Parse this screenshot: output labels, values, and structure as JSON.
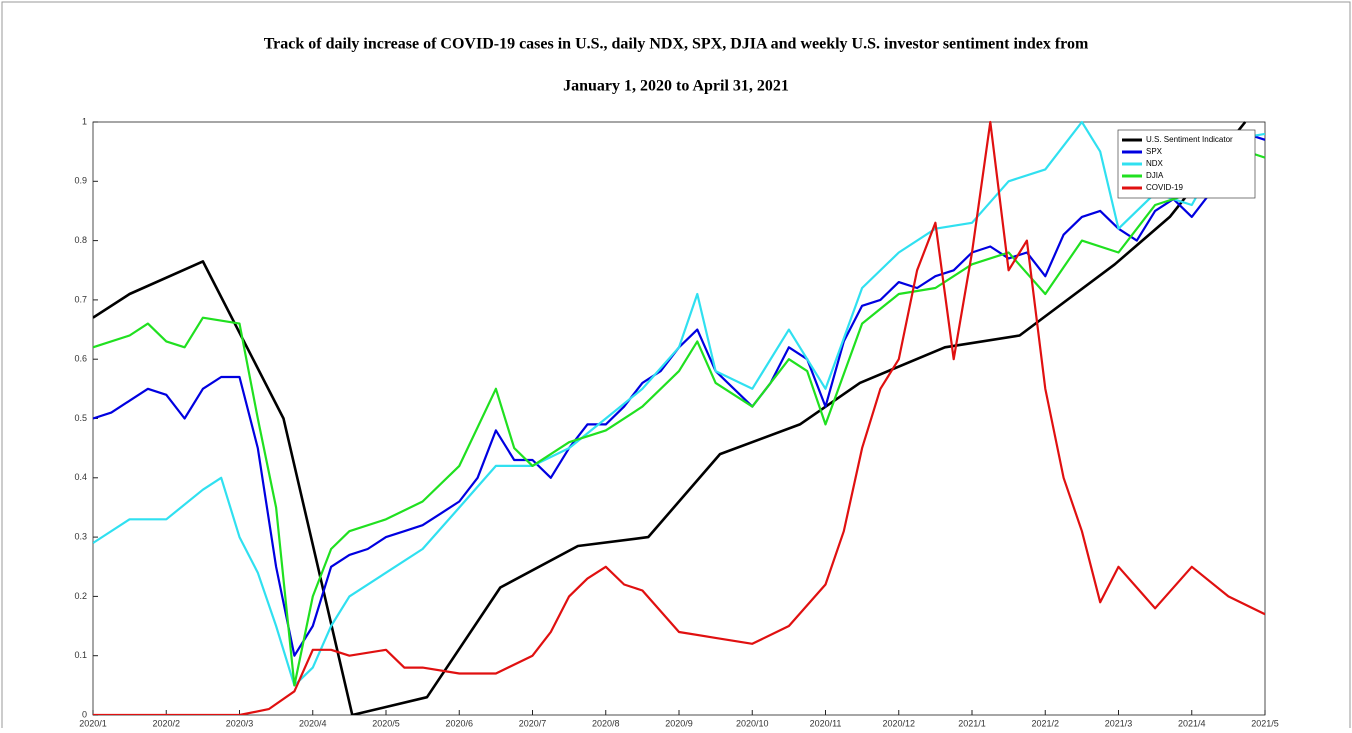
{
  "chart_data": {
    "type": "line",
    "title": "Track of daily increase of COVID-19 cases in U.S., daily NDX, SPX, DJIA and weekly U.S. investor sentiment index from",
    "subtitle": "January 1, 2020 to April 31, 2021",
    "xlim": [
      0,
      16
    ],
    "ylim": [
      0,
      1
    ],
    "xticks": [
      {
        "value": 0,
        "label": "2020/1"
      },
      {
        "value": 1,
        "label": "2020/2"
      },
      {
        "value": 2,
        "label": "2020/3"
      },
      {
        "value": 3,
        "label": "2020/4"
      },
      {
        "value": 4,
        "label": "2020/5"
      },
      {
        "value": 5,
        "label": "2020/6"
      },
      {
        "value": 6,
        "label": "2020/7"
      },
      {
        "value": 7,
        "label": "2020/8"
      },
      {
        "value": 8,
        "label": "2020/9"
      },
      {
        "value": 9,
        "label": "2020/10"
      },
      {
        "value": 10,
        "label": "2020/11"
      },
      {
        "value": 11,
        "label": "2020/12"
      },
      {
        "value": 12,
        "label": "2021/1"
      },
      {
        "value": 13,
        "label": "2021/2"
      },
      {
        "value": 14,
        "label": "2021/3"
      },
      {
        "value": 15,
        "label": "2021/4"
      },
      {
        "value": 16,
        "label": "2021/5"
      }
    ],
    "yticks": [
      0,
      0.1,
      0.2,
      0.3,
      0.4,
      0.5,
      0.6,
      0.7,
      0.8,
      0.9,
      1
    ],
    "legend": "upper right",
    "series": [
      {
        "name": "U.S. Sentiment Indicator",
        "color": "#000000",
        "x": [
          0,
          0.5,
          1.5,
          2.6,
          3.54,
          4.56,
          5.56,
          6.62,
          7.58,
          8.56,
          9.65,
          10.47,
          11.63,
          12.65,
          13.95,
          14.7,
          15.73
        ],
        "values": [
          0.67,
          0.71,
          0.765,
          0.5,
          0.0,
          0.03,
          0.215,
          0.285,
          0.3,
          0.44,
          0.49,
          0.56,
          0.62,
          0.64,
          0.76,
          0.84,
          1.0
        ]
      },
      {
        "name": "SPX",
        "color": "#0000e0",
        "x": [
          0,
          0.25,
          0.5,
          0.75,
          1,
          1.25,
          1.5,
          1.75,
          2,
          2.25,
          2.5,
          2.75,
          3,
          3.25,
          3.5,
          3.75,
          4,
          4.25,
          4.5,
          4.75,
          5,
          5.25,
          5.5,
          5.75,
          6,
          6.25,
          6.5,
          6.75,
          7,
          7.25,
          7.5,
          7.75,
          8,
          8.25,
          8.5,
          8.75,
          9,
          9.25,
          9.5,
          9.75,
          10,
          10.25,
          10.5,
          10.75,
          11,
          11.25,
          11.5,
          11.75,
          12,
          12.25,
          12.5,
          12.75,
          13,
          13.25,
          13.5,
          13.75,
          14,
          14.25,
          14.5,
          14.75,
          15,
          15.25,
          15.5,
          15.75,
          16
        ],
        "values": [
          0.5,
          0.51,
          0.53,
          0.55,
          0.54,
          0.5,
          0.55,
          0.57,
          0.57,
          0.45,
          0.25,
          0.1,
          0.15,
          0.25,
          0.27,
          0.28,
          0.3,
          0.31,
          0.32,
          0.34,
          0.36,
          0.4,
          0.48,
          0.43,
          0.43,
          0.4,
          0.45,
          0.49,
          0.49,
          0.52,
          0.56,
          0.58,
          0.62,
          0.65,
          0.58,
          0.55,
          0.52,
          0.56,
          0.62,
          0.6,
          0.52,
          0.63,
          0.69,
          0.7,
          0.73,
          0.72,
          0.74,
          0.75,
          0.78,
          0.79,
          0.77,
          0.78,
          0.74,
          0.81,
          0.84,
          0.85,
          0.82,
          0.8,
          0.85,
          0.87,
          0.84,
          0.88,
          0.93,
          0.98,
          0.97
        ]
      },
      {
        "name": "NDX",
        "color": "#30e0f0",
        "x": [
          0,
          0.5,
          1,
          1.5,
          1.75,
          2,
          2.25,
          2.5,
          2.75,
          3,
          3.25,
          3.5,
          4,
          4.5,
          5,
          5.5,
          6,
          6.5,
          7,
          7.5,
          8,
          8.25,
          8.5,
          9,
          9.5,
          10,
          10.5,
          11,
          11.5,
          12,
          12.5,
          13,
          13.5,
          13.75,
          14,
          14.5,
          15,
          15.5,
          16
        ],
        "values": [
          0.29,
          0.33,
          0.33,
          0.38,
          0.4,
          0.3,
          0.24,
          0.15,
          0.05,
          0.08,
          0.15,
          0.2,
          0.24,
          0.28,
          0.35,
          0.42,
          0.42,
          0.45,
          0.5,
          0.55,
          0.62,
          0.71,
          0.58,
          0.55,
          0.65,
          0.55,
          0.72,
          0.78,
          0.82,
          0.83,
          0.9,
          0.92,
          1.0,
          0.95,
          0.82,
          0.88,
          0.86,
          0.97,
          0.98
        ]
      },
      {
        "name": "DJIA",
        "color": "#20e020",
        "x": [
          0,
          0.5,
          0.75,
          1,
          1.25,
          1.5,
          2,
          2.25,
          2.5,
          2.75,
          3,
          3.25,
          3.5,
          4,
          4.5,
          5,
          5.5,
          5.75,
          6,
          6.5,
          7,
          7.5,
          8,
          8.25,
          8.5,
          9,
          9.5,
          9.75,
          10,
          10.5,
          11,
          11.5,
          12,
          12.5,
          13,
          13.5,
          14,
          14.5,
          15,
          15.5,
          16
        ],
        "values": [
          0.62,
          0.64,
          0.66,
          0.63,
          0.62,
          0.67,
          0.66,
          0.5,
          0.35,
          0.05,
          0.2,
          0.28,
          0.31,
          0.33,
          0.36,
          0.42,
          0.55,
          0.45,
          0.42,
          0.46,
          0.48,
          0.52,
          0.58,
          0.63,
          0.56,
          0.52,
          0.6,
          0.58,
          0.49,
          0.66,
          0.71,
          0.72,
          0.76,
          0.78,
          0.71,
          0.8,
          0.78,
          0.86,
          0.88,
          0.96,
          0.94
        ]
      },
      {
        "name": "COVID-19",
        "color": "#e01010",
        "x": [
          0,
          1,
          2,
          2.4,
          2.75,
          3,
          3.25,
          3.5,
          4,
          4.25,
          4.5,
          5,
          5.5,
          6,
          6.25,
          6.5,
          6.75,
          7,
          7.25,
          7.5,
          8,
          8.5,
          9,
          9.5,
          10,
          10.25,
          10.5,
          10.75,
          11,
          11.25,
          11.5,
          11.75,
          12,
          12.25,
          12.5,
          12.75,
          13,
          13.25,
          13.5,
          13.75,
          14,
          14.5,
          15,
          15.5,
          16
        ],
        "values": [
          0,
          0,
          0,
          0.01,
          0.04,
          0.11,
          0.11,
          0.1,
          0.11,
          0.08,
          0.08,
          0.07,
          0.07,
          0.1,
          0.14,
          0.2,
          0.23,
          0.25,
          0.22,
          0.21,
          0.14,
          0.13,
          0.12,
          0.15,
          0.22,
          0.31,
          0.45,
          0.55,
          0.6,
          0.75,
          0.83,
          0.6,
          0.78,
          1.0,
          0.75,
          0.8,
          0.55,
          0.4,
          0.31,
          0.19,
          0.25,
          0.18,
          0.25,
          0.2,
          0.17
        ]
      }
    ]
  }
}
